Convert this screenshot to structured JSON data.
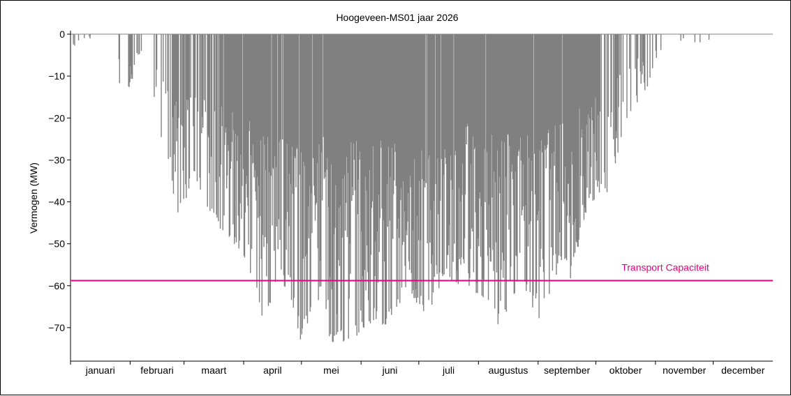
{
  "chart_data": {
    "type": "bar",
    "title": "Hoogeveen-MS01 jaar 2026",
    "ylabel": "Vermogen (MW)",
    "xlabel": "",
    "ylim": [
      -78,
      0
    ],
    "yticks": [
      0,
      -10,
      -20,
      -30,
      -40,
      -50,
      -60,
      -70
    ],
    "ytick_labels": [
      "0",
      "−10",
      "−20",
      "−30",
      "−40",
      "−50",
      "−60",
      "−70"
    ],
    "months": [
      "januari",
      "februari",
      "maart",
      "april",
      "mei",
      "juni",
      "juli",
      "augustus",
      "september",
      "oktober",
      "november",
      "december"
    ],
    "month_days": [
      31,
      28,
      31,
      30,
      31,
      30,
      31,
      31,
      30,
      31,
      30,
      31
    ],
    "bar_color": "#808080",
    "transport_capacity": {
      "label": "Transport Capaciteit",
      "value": -58.8,
      "color": "#e6007e"
    },
    "daily_min_profile": {
      "description_units": "MW",
      "day_of_year": [
        1,
        5,
        14,
        19,
        28,
        35,
        40,
        50,
        57,
        65,
        72,
        80,
        90,
        100,
        110,
        120,
        130,
        137,
        145,
        155,
        165,
        175,
        185,
        195,
        205,
        215,
        225,
        235,
        245,
        255,
        260,
        270,
        280,
        290,
        300,
        310,
        320,
        330,
        340,
        350,
        360
      ],
      "min_value": [
        -7,
        -1.5,
        -1,
        -10,
        -16,
        -9,
        -13,
        -29,
        -45,
        -35,
        -42,
        -48,
        -52,
        -68,
        -59,
        -73,
        -63,
        -76,
        -73,
        -71,
        -70,
        -62,
        -67,
        -60,
        -60,
        -63,
        -71,
        -60,
        -69,
        -55,
        -59.5,
        -40,
        -39,
        -20,
        -13,
        0,
        -2,
        -2,
        -5,
        0,
        0
      ]
    }
  }
}
